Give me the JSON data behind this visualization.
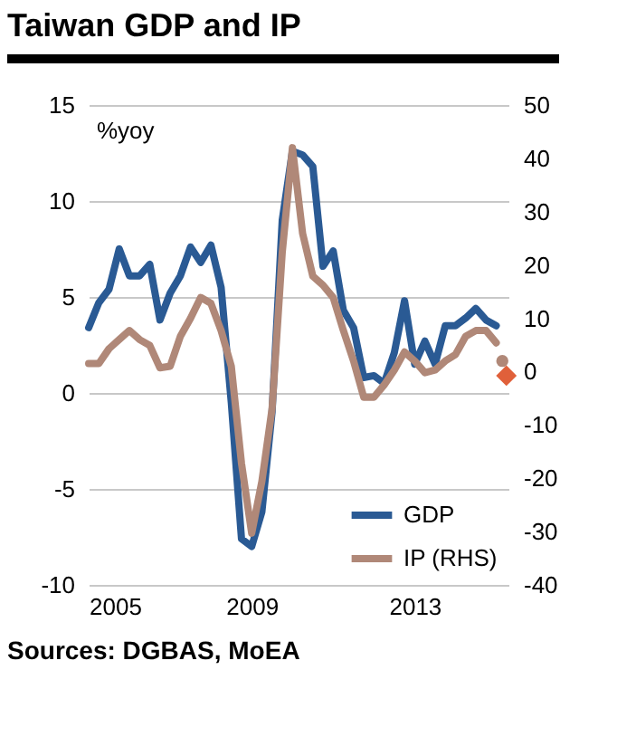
{
  "chart_data": {
    "type": "line",
    "title": "Taiwan GDP and IP",
    "ylabel": "%yoy",
    "annotations": [
      "Sources: DGBAS, MoEA"
    ],
    "x": [
      2005,
      2005.25,
      2005.5,
      2005.75,
      2006,
      2006.25,
      2006.5,
      2006.75,
      2007,
      2007.25,
      2007.5,
      2007.75,
      2008,
      2008.25,
      2008.5,
      2008.75,
      2009,
      2009.25,
      2009.5,
      2009.75,
      2010,
      2010.25,
      2010.5,
      2010.75,
      2011,
      2011.25,
      2011.5,
      2011.75,
      2012,
      2012.25,
      2012.5,
      2012.75,
      2013,
      2013.25,
      2013.5,
      2013.75,
      2014,
      2014.25,
      2014.5,
      2014.75,
      2015
    ],
    "series": [
      {
        "name": "GDP",
        "type": "line",
        "color": "#2a5a94",
        "values": [
          3.4,
          4.7,
          5.4,
          7.5,
          6.1,
          6.1,
          6.7,
          3.8,
          5.2,
          6.1,
          7.6,
          6.8,
          7.7,
          5.5,
          -0.5,
          -7.6,
          -8.0,
          -6.2,
          -1.0,
          9.0,
          12.6,
          12.4,
          11.8,
          6.6,
          7.4,
          4.3,
          3.4,
          0.8,
          0.9,
          0.5,
          2.1,
          4.8,
          1.5,
          2.7,
          1.5,
          3.5,
          3.5,
          3.9,
          4.4,
          3.8,
          3.5
        ]
      },
      {
        "name": "IP (RHS)",
        "type": "line",
        "axis": "y2",
        "color": "#b08878",
        "values": [
          1.5,
          1.5,
          4.3,
          6.0,
          7.7,
          6.0,
          4.9,
          0.7,
          1.0,
          6.6,
          10,
          13.9,
          12.8,
          7.7,
          1.0,
          -17.2,
          -30.3,
          -20.6,
          -7.0,
          22.4,
          42,
          25.9,
          17.9,
          16.2,
          13.9,
          7.7,
          2.0,
          -4.8,
          -4.8,
          -2.5,
          0.3,
          3.7,
          2.0,
          -0.2,
          0.3,
          2.0,
          3.2,
          6.6,
          7.7,
          7.7,
          5.4
        ]
      },
      {
        "type": "scatter",
        "axis": "y2",
        "color": "#b08878",
        "marker": "circle",
        "x": [
          2015.15
        ],
        "values": [
          2.0
        ]
      },
      {
        "type": "scatter",
        "color": "#e0603a",
        "marker": "diamond",
        "x": [
          2015.25
        ],
        "values": [
          0.9
        ]
      }
    ],
    "xlim": [
      2005,
      2015.3
    ],
    "xticks": [
      2005,
      2009,
      2013
    ],
    "ylim": [
      -10,
      15
    ],
    "yticks": [
      -10,
      -5,
      0,
      5,
      10,
      15
    ],
    "y2lim": [
      -40,
      50
    ],
    "y2ticks": [
      -40,
      -30,
      -20,
      -10,
      0,
      10,
      20,
      30,
      40,
      50
    ],
    "grid": "y",
    "legend": "bottom right"
  }
}
